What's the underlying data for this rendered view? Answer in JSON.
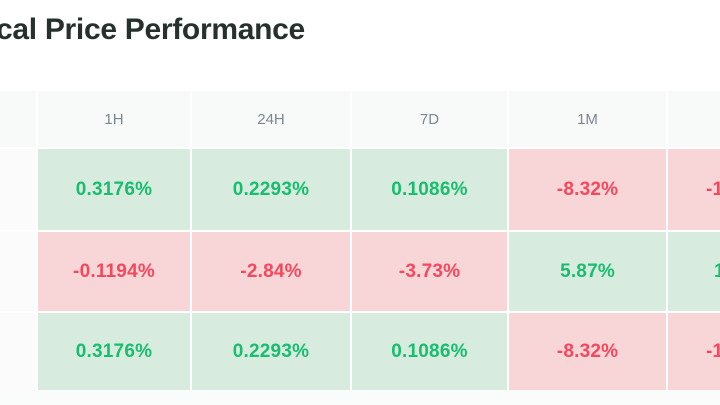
{
  "title": "cal Price Performance",
  "colors": {
    "positive_text": "#18bd6e",
    "positive_bg": "#d7ecdf",
    "negative_text": "#f6485c",
    "negative_bg": "#f8d5d7",
    "header_text": "#7d8791",
    "header_bg": "#f8f9f9",
    "title_text": "#26312e"
  },
  "table": {
    "column_headers": [
      "",
      "1H",
      "24H",
      "7D",
      "1M",
      ""
    ],
    "column_keys": [
      "blank",
      "1h",
      "24h",
      "7d",
      "1m",
      "clipped"
    ],
    "rows": [
      {
        "cells": [
          "",
          "0.3176%",
          "0.2293%",
          "0.1086%",
          "-8.32%",
          "-1"
        ]
      },
      {
        "cells": [
          "",
          "-0.1194%",
          "-2.84%",
          "-3.73%",
          "5.87%",
          "1"
        ]
      },
      {
        "cells": [
          "",
          "0.3176%",
          "0.2293%",
          "0.1086%",
          "-8.32%",
          "-1"
        ]
      }
    ]
  }
}
